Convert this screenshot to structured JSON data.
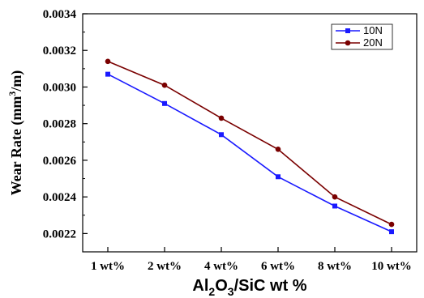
{
  "chart_data": {
    "type": "line",
    "categories": [
      "1 wt%",
      "2 wt%",
      "4 wt%",
      "6 wt%",
      "8 wt%",
      "10 wt%"
    ],
    "series": [
      {
        "name": "10N",
        "color": "#1a1aff",
        "marker": "square",
        "values": [
          0.00307,
          0.00291,
          0.00274,
          0.00251,
          0.00235,
          0.00221
        ]
      },
      {
        "name": "20N",
        "color": "#7a0000",
        "marker": "circle",
        "values": [
          0.00314,
          0.00301,
          0.00283,
          0.00266,
          0.0024,
          0.00225
        ]
      }
    ],
    "xlabel_main": "Al",
    "xlabel_sub1": "2",
    "xlabel_mid": "O",
    "xlabel_sub2": "3",
    "xlabel_rest": "/SiC wt %",
    "ylabel_main": "Wear Rate (mm",
    "ylabel_sup": "3",
    "ylabel_rest": "/m)",
    "ylim": [
      0.0021,
      0.0034
    ],
    "yticks": [
      "0.0022",
      "0.0024",
      "0.0026",
      "0.0028",
      "0.0030",
      "0.0032",
      "0.0034"
    ],
    "legend_position": "top-right",
    "grid": false
  }
}
